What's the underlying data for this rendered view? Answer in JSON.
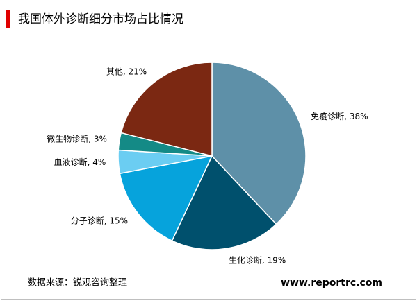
{
  "chart_data": {
    "type": "pie",
    "title": "我国体外诊断细分市场占比情况",
    "values": [
      38,
      19,
      15,
      4,
      3,
      21
    ],
    "value_labels": [
      "免疫诊断, 38%",
      "生化诊断, 19%",
      "分子诊断, 15%",
      "血液诊断, 4%",
      "微生物诊断, 3%",
      "其他, 21%"
    ],
    "colors": [
      "#5e90a8",
      "#00506d",
      "#06a3dc",
      "#6bcdf2",
      "#148a86",
      "#7b2812"
    ],
    "source": "数据来源：锐观咨询整理",
    "watermark": "www.reportrc.com"
  }
}
